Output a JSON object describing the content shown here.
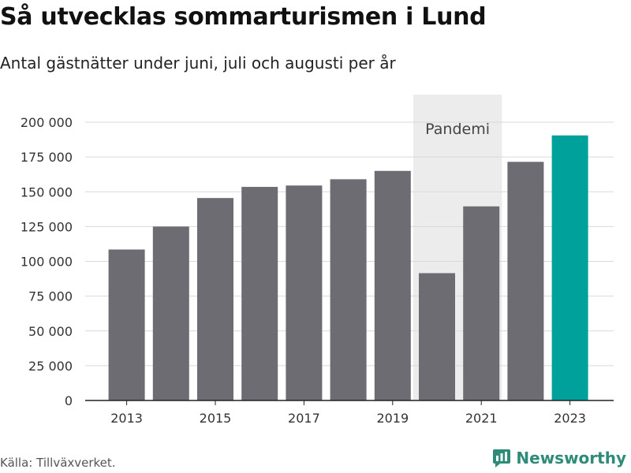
{
  "header": {
    "title": "Så utvecklas sommarturismen i Lund",
    "subtitle": "Antal gästnätter under juni, juli och augusti per år"
  },
  "footer": {
    "source": "Källa: Tillväxverket.",
    "brand": "Newsworthy"
  },
  "colors": {
    "bar_default": "#6e6c73",
    "bar_highlight": "#00a19a",
    "highlight_band": "#ececec",
    "grid": "#d9d9d9",
    "brand": "#2e8b7a"
  },
  "icons": {
    "brand": "newsworthy-logo-icon"
  },
  "chart_data": {
    "type": "bar",
    "title": "Så utvecklas sommarturismen i Lund",
    "subtitle": "Antal gästnätter under juni, juli och augusti per år",
    "xlabel": "",
    "ylabel": "",
    "categories": [
      "2013",
      "2014",
      "2015",
      "2016",
      "2017",
      "2018",
      "2019",
      "2020",
      "2021",
      "2022",
      "2023"
    ],
    "values": [
      108500,
      125000,
      145500,
      153500,
      154500,
      159000,
      165000,
      91500,
      139500,
      171500,
      190500
    ],
    "highlight_category": "2023",
    "ylim": [
      0,
      200000
    ],
    "yticks": [
      0,
      25000,
      50000,
      75000,
      100000,
      125000,
      150000,
      175000,
      200000
    ],
    "ytick_labels": [
      "0",
      "25 000",
      "50 000",
      "75 000",
      "100 000",
      "125 000",
      "150 000",
      "175 000",
      "200 000"
    ],
    "xtick_labels": [
      "2013",
      "2015",
      "2017",
      "2019",
      "2021",
      "2023"
    ],
    "annotation": {
      "label": "Pandemi",
      "span": [
        "2020",
        "2021"
      ]
    },
    "grid": true,
    "legend": "none"
  }
}
